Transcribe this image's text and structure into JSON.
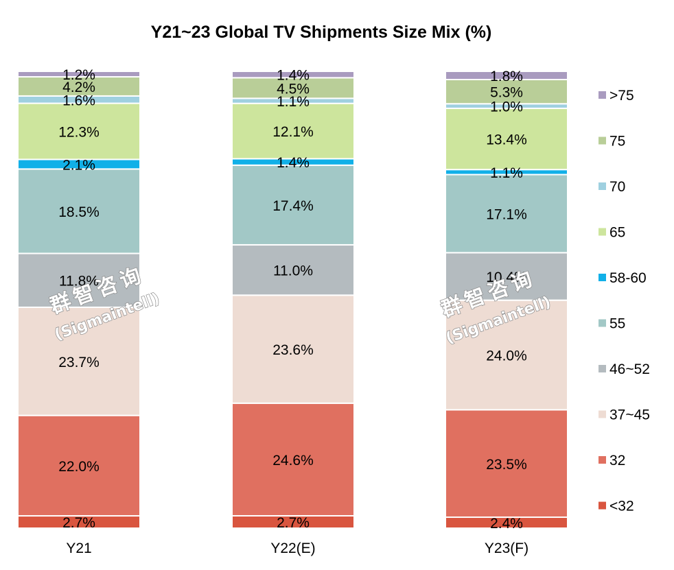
{
  "chart_data": {
    "type": "bar",
    "stacked": true,
    "title": "Y21~23 Global TV Shipments Size Mix (%)",
    "xlabel": "",
    "ylabel": "",
    "ylim": [
      0,
      100
    ],
    "grid": false,
    "legend_position": "right",
    "categories": [
      "Y21",
      "Y22(E)",
      "Y23(F)"
    ],
    "series": [
      {
        "name": "<32",
        "color": "#d9553f",
        "values": [
          2.7,
          2.7,
          2.4
        ],
        "labels": [
          "2.7%",
          "2.7%",
          "2.4%"
        ]
      },
      {
        "name": "32",
        "color": "#e07060",
        "values": [
          22.0,
          24.6,
          23.5
        ],
        "labels": [
          "22.0%",
          "24.6%",
          "23.5%"
        ]
      },
      {
        "name": "37~45",
        "color": "#eedcd3",
        "values": [
          23.7,
          23.6,
          24.0
        ],
        "labels": [
          "23.7%",
          "23.6%",
          "24.0%"
        ]
      },
      {
        "name": "46~52",
        "color": "#b4bbbf",
        "values": [
          11.8,
          11.0,
          10.4
        ],
        "labels": [
          "11.8%",
          "11.0%",
          "10.4%"
        ]
      },
      {
        "name": "55",
        "color": "#a2c8c6",
        "values": [
          18.5,
          17.4,
          17.1
        ],
        "labels": [
          "18.5%",
          "17.4%",
          "17.1%"
        ]
      },
      {
        "name": "58-60",
        "color": "#11b0e8",
        "values": [
          2.1,
          1.4,
          1.1
        ],
        "labels": [
          "2.1%",
          "1.4%",
          "1.1%"
        ]
      },
      {
        "name": "65",
        "color": "#cde59d",
        "values": [
          12.3,
          12.1,
          13.4
        ],
        "labels": [
          "12.3%",
          "12.1%",
          "13.4%"
        ]
      },
      {
        "name": "70",
        "color": "#9fd0e0",
        "values": [
          1.6,
          1.1,
          1.0
        ],
        "labels": [
          "1.6%",
          "1.1%",
          "1.0%"
        ]
      },
      {
        "name": "75",
        "color": "#b9ce98",
        "values": [
          4.2,
          4.5,
          5.3
        ],
        "labels": [
          "4.2%",
          "4.5%",
          "5.3%"
        ]
      },
      {
        "name": ">75",
        "color": "#a99bbf",
        "values": [
          1.2,
          1.4,
          1.8
        ],
        "labels": [
          "1.2%",
          "1.4%",
          "1.8%"
        ]
      }
    ]
  },
  "watermark": {
    "line1": "群智咨询",
    "line2": "(Sigmaintell)"
  }
}
